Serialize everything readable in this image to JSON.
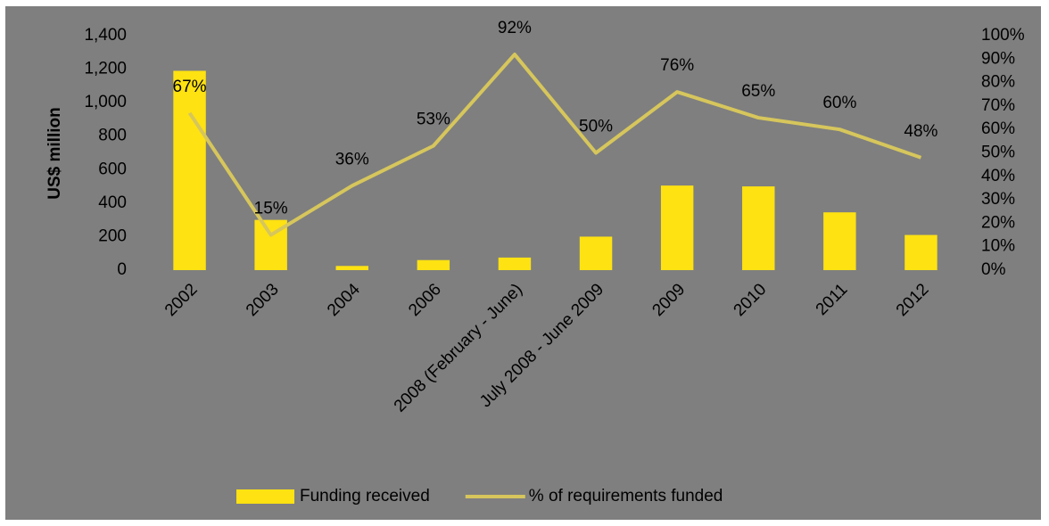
{
  "chart_data": {
    "type": "bar",
    "categories": [
      "2002",
      "2003",
      "2004",
      "2006",
      "2008 (February - June)",
      "July 2008 - June 2009",
      "2009",
      "2010",
      "2011",
      "2012"
    ],
    "y_label": "US$ million",
    "series": [
      {
        "name": "Funding received",
        "type": "bar",
        "color": "#ffe212",
        "values": [
          1190,
          300,
          25,
          60,
          75,
          200,
          505,
          500,
          345,
          210
        ]
      },
      {
        "name": "% of requirements funded",
        "type": "line",
        "color": "#d6c65c",
        "axis": "y2",
        "values": [
          67,
          15,
          36,
          53,
          92,
          50,
          76,
          65,
          60,
          48
        ],
        "value_labels": [
          "67%",
          "15%",
          "36%",
          "53%",
          "92%",
          "50%",
          "76%",
          "65%",
          "60%",
          "48%"
        ]
      }
    ],
    "ylim": [
      0,
      1400
    ],
    "yticks": [
      0,
      200,
      400,
      600,
      800,
      {
        "value": 1000,
        "label": "1,000"
      },
      {
        "value": 1200,
        "label": "1,200"
      },
      {
        "value": 1400,
        "label": "1,400"
      }
    ],
    "y2lim": [
      0,
      100
    ],
    "y2ticks": [
      {
        "value": 0,
        "label": "0%"
      },
      {
        "value": 10,
        "label": "10%"
      },
      {
        "value": 20,
        "label": "20%"
      },
      {
        "value": 30,
        "label": "30%"
      },
      {
        "value": 40,
        "label": "40%"
      },
      {
        "value": 50,
        "label": "50%"
      },
      {
        "value": 60,
        "label": "60%"
      },
      {
        "value": 70,
        "label": "70%"
      },
      {
        "value": 80,
        "label": "80%"
      },
      {
        "value": 90,
        "label": "90%"
      },
      {
        "value": 100,
        "label": "100%"
      }
    ],
    "grid": false,
    "legend": "bottom"
  }
}
